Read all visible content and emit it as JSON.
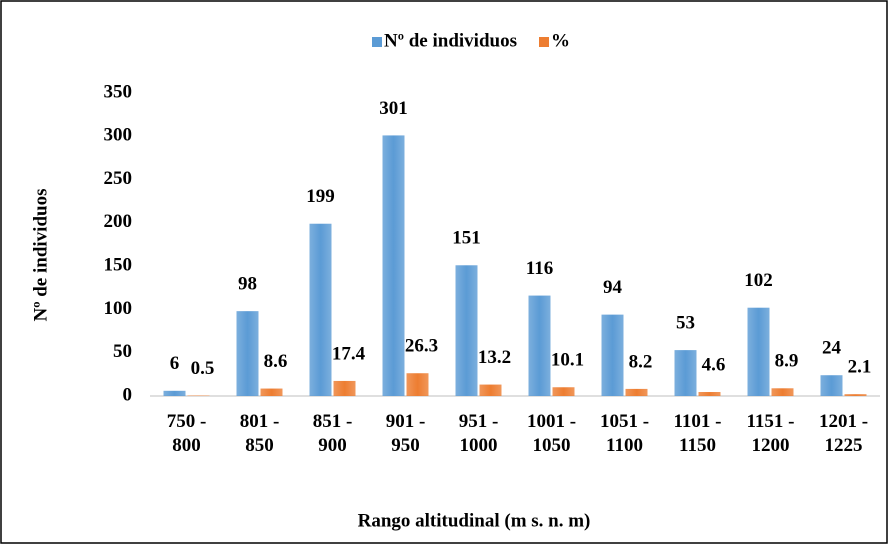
{
  "chart_data": {
    "type": "bar",
    "categories": [
      "750 - 800",
      "801 - 850",
      "851 - 900",
      "901 - 950",
      "951 - 1000",
      "1001 - 1050",
      "1051 - 1100",
      "1101 - 1150",
      "1151 - 1200",
      "1201 - 1225"
    ],
    "series": [
      {
        "name": "Nº de individuos",
        "color": "#5b9bd5",
        "values": [
          6,
          98,
          199,
          301,
          151,
          116,
          94,
          53,
          102,
          24
        ]
      },
      {
        "name": "%",
        "color": "#ed7d31",
        "values": [
          0.5,
          8.6,
          17.4,
          26.3,
          13.2,
          10.1,
          8.2,
          4.6,
          8.9,
          2.1
        ]
      }
    ],
    "ylim": [
      0,
      350
    ],
    "yticks": [
      0,
      50,
      100,
      150,
      200,
      250,
      300,
      350
    ],
    "ylabel": "Nº de individuos",
    "xlabel": "Rango altitudinal  (m s. n. m)",
    "grid": false,
    "legend": "top"
  }
}
